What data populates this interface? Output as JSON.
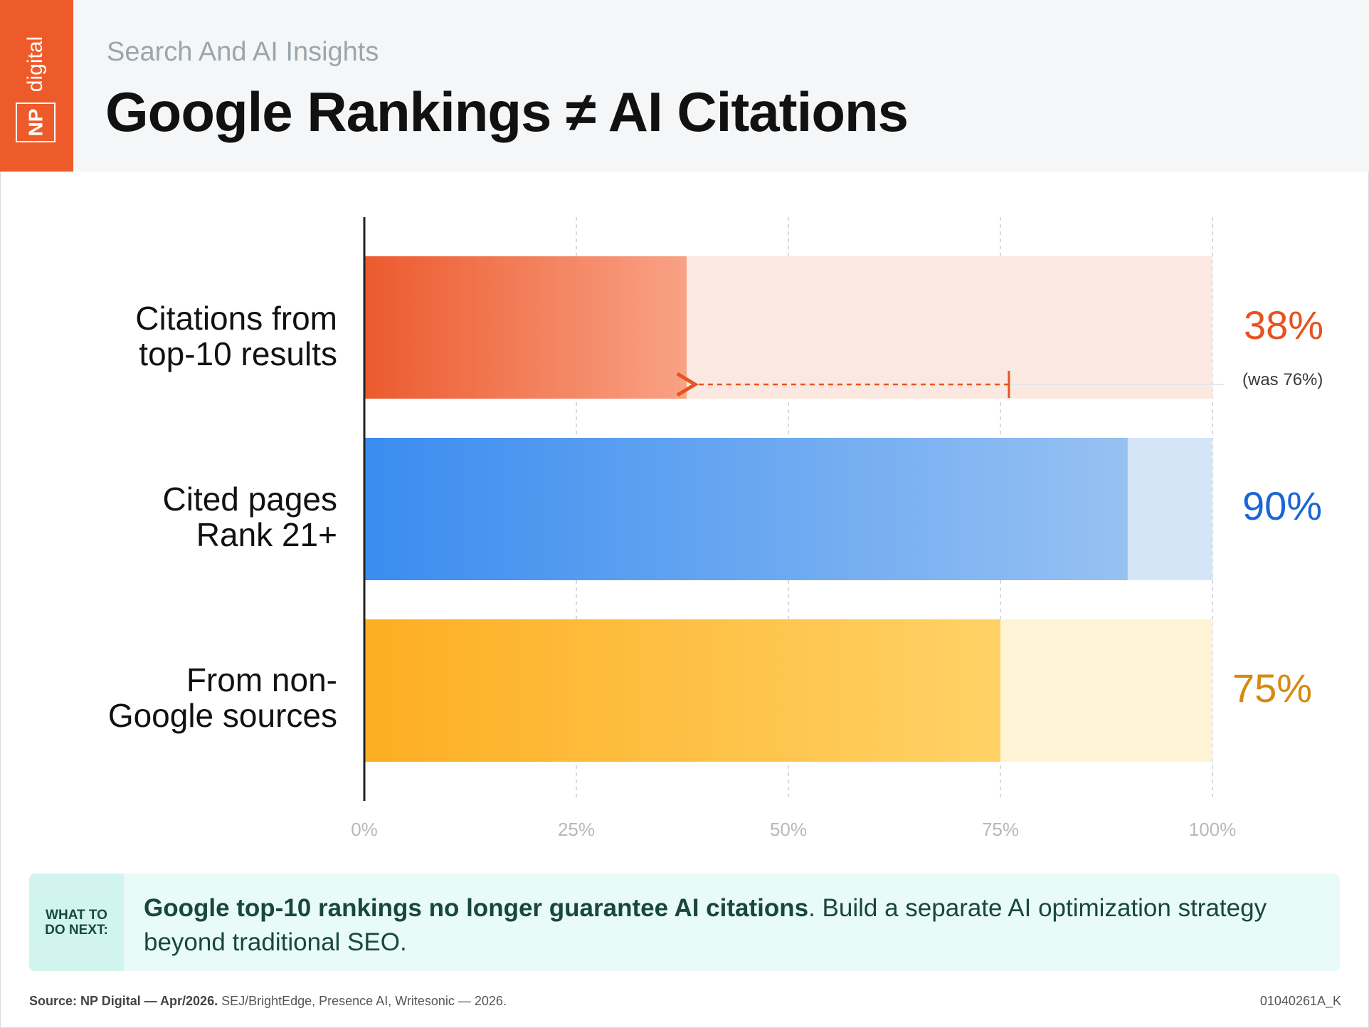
{
  "header": {
    "logo_np": "NP",
    "logo_word": "digital",
    "subtitle": "Search And AI Insights",
    "title": "Google Rankings ≠ AI Citations"
  },
  "colors": {
    "brand_orange": "#ee5b2b",
    "series_orange": "#e8521f",
    "series_blue": "#1a66d6",
    "series_amber": "#d68a0e"
  },
  "chart_data": {
    "type": "bar",
    "orientation": "horizontal",
    "categories": [
      "Citations from top-10 results",
      "Cited pages Rank 21+",
      "From non-Google sources"
    ],
    "values": [
      38,
      90,
      75
    ],
    "value_labels": [
      "38%",
      "90%",
      "75%"
    ],
    "previous_value": 76,
    "previous_label": "(was 76%)",
    "xlim": [
      0,
      100
    ],
    "xticks": [
      "0%",
      "25%",
      "50%",
      "75%",
      "100%"
    ],
    "grid": true
  },
  "labels": {
    "row1_line1": "Citations from",
    "row1_line2": "top-10 results",
    "row2_line1": "Cited pages",
    "row2_line2": "Rank 21+",
    "row3_line1": "From non-",
    "row3_line2": "Google sources"
  },
  "callout": {
    "tag_line1": "WHAT TO",
    "tag_line2": "DO NEXT:",
    "bold": "Google top-10 rankings no longer guarantee AI citations",
    "rest": ". Build a separate AI optimization strategy beyond traditional SEO."
  },
  "footer": {
    "source_bold": "Source: NP Digital — Apr/2026.",
    "source_rest": " SEJ/BrightEdge, Presence AI, Writesonic — 2026.",
    "code": "01040261A_K"
  }
}
